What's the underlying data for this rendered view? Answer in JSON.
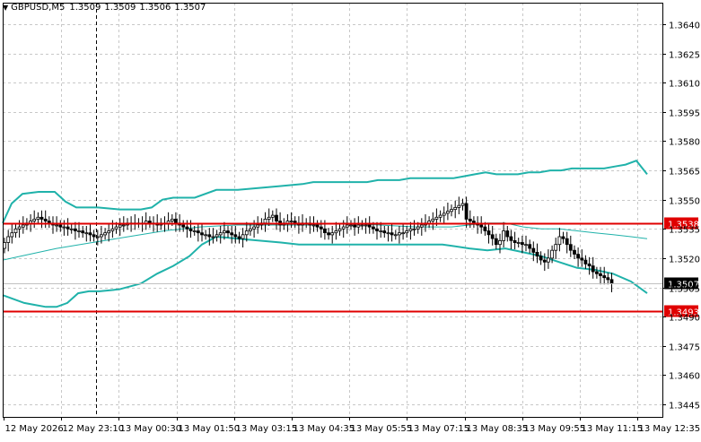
{
  "window": {
    "symbol": "GBPUSD,M5",
    "ohlc": [
      "1.3509",
      "1.3509",
      "1.3506",
      "1.3507"
    ]
  },
  "colors": {
    "grid": "#c8c8c8",
    "frame": "#000000",
    "candle_bull": "#ffffff",
    "candle_bear": "#000000",
    "bollinger": "#20b2aa",
    "level_line": "#e00000",
    "price_line": "#c0c0c0",
    "current_tag_bg": "#000000",
    "level_tag_bg": "#e00000"
  },
  "chart_data": {
    "type": "candlestick",
    "instrument": "GBPUSD",
    "timeframe": "M5",
    "ylim": [
      1.3435,
      1.365
    ],
    "y_ticks": [
      "1.3640",
      "1.3625",
      "1.3610",
      "1.3595",
      "1.3580",
      "1.3565",
      "1.3550",
      "1.3535",
      "1.3520",
      "1.3505",
      "1.3490",
      "1.3475",
      "1.3460",
      "1.3445"
    ],
    "x_labels": [
      "12 May 2026",
      "12 May 23:10",
      "13 May 00:30",
      "13 May 01:50",
      "13 May 03:15",
      "13 May 04:35",
      "13 May 05:55",
      "13 May 07:15",
      "13 May 08:35",
      "13 May 09:55",
      "13 May 11:15",
      "13 May 12:35"
    ],
    "levels": [
      {
        "label": "1.3538",
        "value": 1.3538
      },
      {
        "label": "1.3493",
        "value": 1.3493
      }
    ],
    "current_price": {
      "label": "1.3507",
      "value": 1.3507
    },
    "close": [
      1.3528,
      1.3531,
      1.3533,
      1.3535,
      1.3536,
      1.3537,
      1.3538,
      1.3539,
      1.354,
      1.3541,
      1.354,
      1.3539,
      1.3538,
      1.3537,
      1.3537,
      1.3536,
      1.3536,
      1.3535,
      1.3535,
      1.3534,
      1.3534,
      1.3533,
      1.3533,
      1.3532,
      1.3531,
      1.3531,
      1.3532,
      1.3533,
      1.3534,
      1.3535,
      1.3536,
      1.3537,
      1.3537,
      1.3538,
      1.3538,
      1.3538,
      1.3538,
      1.3538,
      1.3539,
      1.3538,
      1.3538,
      1.3537,
      1.3538,
      1.3538,
      1.3539,
      1.354,
      1.3538,
      1.3537,
      1.3536,
      1.3535,
      1.3534,
      1.3534,
      1.3533,
      1.3532,
      1.3532,
      1.3531,
      1.3531,
      1.3532,
      1.3533,
      1.3534,
      1.3533,
      1.3532,
      1.3531,
      1.353,
      1.3532,
      1.3534,
      1.3535,
      1.3536,
      1.3537,
      1.3538,
      1.354,
      1.3541,
      1.3542,
      1.3539,
      1.3537,
      1.3538,
      1.3539,
      1.3539,
      1.3538,
      1.3537,
      1.3538,
      1.3538,
      1.3537,
      1.3537,
      1.3536,
      1.3535,
      1.3533,
      1.3532,
      1.3533,
      1.3534,
      1.3535,
      1.3536,
      1.3537,
      1.3537,
      1.3536,
      1.3537,
      1.3537,
      1.3537,
      1.3536,
      1.3535,
      1.3534,
      1.3534,
      1.3533,
      1.3533,
      1.3532,
      1.3532,
      1.3533,
      1.3533,
      1.3534,
      1.3535,
      1.3535,
      1.3536,
      1.3537,
      1.3538,
      1.3539,
      1.354,
      1.3541,
      1.3542,
      1.3543,
      1.3544,
      1.3545,
      1.3546,
      1.3547,
      1.3548,
      1.354,
      1.3539,
      1.3538,
      1.3537,
      1.3536,
      1.3534,
      1.3532,
      1.353,
      1.3527,
      1.3529,
      1.3534,
      1.3531,
      1.3529,
      1.3528,
      1.3528,
      1.3527,
      1.3527,
      1.3525,
      1.3523,
      1.3521,
      1.3519,
      1.3518,
      1.352,
      1.3524,
      1.3527,
      1.3531,
      1.353,
      1.3527,
      1.3524,
      1.3522,
      1.352,
      1.3519,
      1.3517,
      1.3516,
      1.3513,
      1.3512,
      1.3511,
      1.351,
      1.3509,
      1.3507
    ],
    "bollinger": {
      "upper": [
        [
          0,
          1.3538
        ],
        [
          10,
          1.3548
        ],
        [
          22,
          1.3553
        ],
        [
          40,
          1.3554
        ],
        [
          58,
          1.3554
        ],
        [
          70,
          1.3549
        ],
        [
          82,
          1.3546
        ],
        [
          106,
          1.3546
        ],
        [
          130,
          1.3545
        ],
        [
          154,
          1.3545
        ],
        [
          166,
          1.3546
        ],
        [
          178,
          1.355
        ],
        [
          190,
          1.3551
        ],
        [
          214,
          1.3551
        ],
        [
          238,
          1.3555
        ],
        [
          262,
          1.3555
        ],
        [
          286,
          1.3556
        ],
        [
          310,
          1.3557
        ],
        [
          334,
          1.3558
        ],
        [
          346,
          1.3559
        ],
        [
          358,
          1.3559
        ],
        [
          370,
          1.3559
        ],
        [
          382,
          1.3559
        ],
        [
          394,
          1.3559
        ],
        [
          406,
          1.3559
        ],
        [
          418,
          1.356
        ],
        [
          430,
          1.356
        ],
        [
          442,
          1.356
        ],
        [
          454,
          1.3561
        ],
        [
          466,
          1.3561
        ],
        [
          478,
          1.3561
        ],
        [
          490,
          1.3561
        ],
        [
          502,
          1.3561
        ],
        [
          514,
          1.3562
        ],
        [
          526,
          1.3563
        ],
        [
          538,
          1.3564
        ],
        [
          550,
          1.3563
        ],
        [
          562,
          1.3563
        ],
        [
          574,
          1.3563
        ],
        [
          586,
          1.3564
        ],
        [
          598,
          1.3564
        ],
        [
          610,
          1.3565
        ],
        [
          622,
          1.3565
        ],
        [
          634,
          1.3566
        ],
        [
          646,
          1.3566
        ],
        [
          658,
          1.3566
        ],
        [
          670,
          1.3566
        ],
        [
          682,
          1.3567
        ],
        [
          694,
          1.3568
        ],
        [
          706,
          1.357
        ],
        [
          718,
          1.3563
        ]
      ],
      "middle": [
        [
          0,
          1.3519
        ],
        [
          20,
          1.3521
        ],
        [
          60,
          1.3525
        ],
        [
          100,
          1.3528
        ],
        [
          140,
          1.3531
        ],
        [
          180,
          1.3534
        ],
        [
          220,
          1.3536
        ],
        [
          260,
          1.3537
        ],
        [
          300,
          1.3537
        ],
        [
          340,
          1.3537
        ],
        [
          380,
          1.3538
        ],
        [
          420,
          1.3537
        ],
        [
          460,
          1.3536
        ],
        [
          500,
          1.3536
        ],
        [
          540,
          1.3538
        ],
        [
          560,
          1.3538
        ],
        [
          580,
          1.3536
        ],
        [
          600,
          1.3535
        ],
        [
          620,
          1.3535
        ],
        [
          640,
          1.3534
        ],
        [
          660,
          1.3533
        ],
        [
          680,
          1.3532
        ],
        [
          700,
          1.3531
        ],
        [
          718,
          1.353
        ]
      ],
      "lower": [
        [
          0,
          1.3501
        ],
        [
          12,
          1.3499
        ],
        [
          24,
          1.3497
        ],
        [
          36,
          1.3496
        ],
        [
          48,
          1.3495
        ],
        [
          60,
          1.3495
        ],
        [
          72,
          1.3497
        ],
        [
          84,
          1.3502
        ],
        [
          96,
          1.3503
        ],
        [
          108,
          1.3503
        ],
        [
          130,
          1.3504
        ],
        [
          154,
          1.3507
        ],
        [
          172,
          1.3512
        ],
        [
          190,
          1.3516
        ],
        [
          208,
          1.3521
        ],
        [
          222,
          1.3527
        ],
        [
          238,
          1.3531
        ],
        [
          262,
          1.353
        ],
        [
          286,
          1.3529
        ],
        [
          310,
          1.3528
        ],
        [
          330,
          1.3527
        ],
        [
          360,
          1.3527
        ],
        [
          390,
          1.3527
        ],
        [
          420,
          1.3527
        ],
        [
          450,
          1.3527
        ],
        [
          490,
          1.3527
        ],
        [
          520,
          1.3525
        ],
        [
          540,
          1.3524
        ],
        [
          560,
          1.3525
        ],
        [
          580,
          1.3523
        ],
        [
          600,
          1.3521
        ],
        [
          620,
          1.3518
        ],
        [
          640,
          1.3515
        ],
        [
          660,
          1.3514
        ],
        [
          680,
          1.3512
        ],
        [
          700,
          1.3508
        ],
        [
          718,
          1.3502
        ]
      ]
    }
  }
}
